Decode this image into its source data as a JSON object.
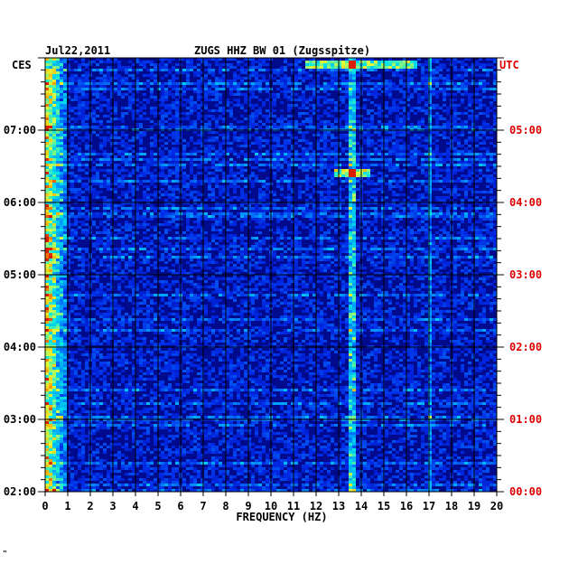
{
  "header": {
    "date": "Jul22,2011",
    "station": "ZUGS HHZ BW 01 (Zugsspitze)",
    "left_tz": "CES",
    "right_tz": "UTC"
  },
  "colors": {
    "background": "#000a8c",
    "grid": "#000000",
    "utc_text": "#dd0000",
    "text": "#000000"
  },
  "footer_mark": "\"",
  "chart_data": {
    "type": "heatmap",
    "title": "ZUGS HHZ BW 01 (Zugsspitze)",
    "xlabel": "FREQUENCY (HZ)",
    "ylabel": "",
    "xlim": [
      0,
      20
    ],
    "x_ticks": [
      0,
      1,
      2,
      3,
      4,
      5,
      6,
      7,
      8,
      9,
      10,
      11,
      12,
      13,
      14,
      15,
      16,
      17,
      18,
      19,
      20
    ],
    "left_time_ticks": [
      "07:00",
      "06:00",
      "05:00",
      "04:00",
      "03:00",
      "02:00"
    ],
    "right_time_ticks": [
      "05:00",
      "04:00",
      "03:00",
      "02:00",
      "01:00",
      "00:00"
    ],
    "features": [
      {
        "description": "strong low-frequency energy",
        "freq_range_hz": [
          0.1,
          1.0
        ],
        "intensity": "high"
      },
      {
        "description": "persistent narrow band",
        "freq_hz": 13.6,
        "intensity": "medium-high"
      },
      {
        "description": "persistent narrow band",
        "freq_hz": 17.0,
        "intensity": "medium"
      },
      {
        "description": "broadband burst",
        "time_utc": "04:25",
        "freq_range_hz": [
          12.8,
          14.4
        ],
        "intensity": "high"
      },
      {
        "description": "broadband burst",
        "time_utc": "05:55",
        "freq_range_hz": [
          11.5,
          16.5
        ],
        "intensity": "high"
      }
    ]
  }
}
